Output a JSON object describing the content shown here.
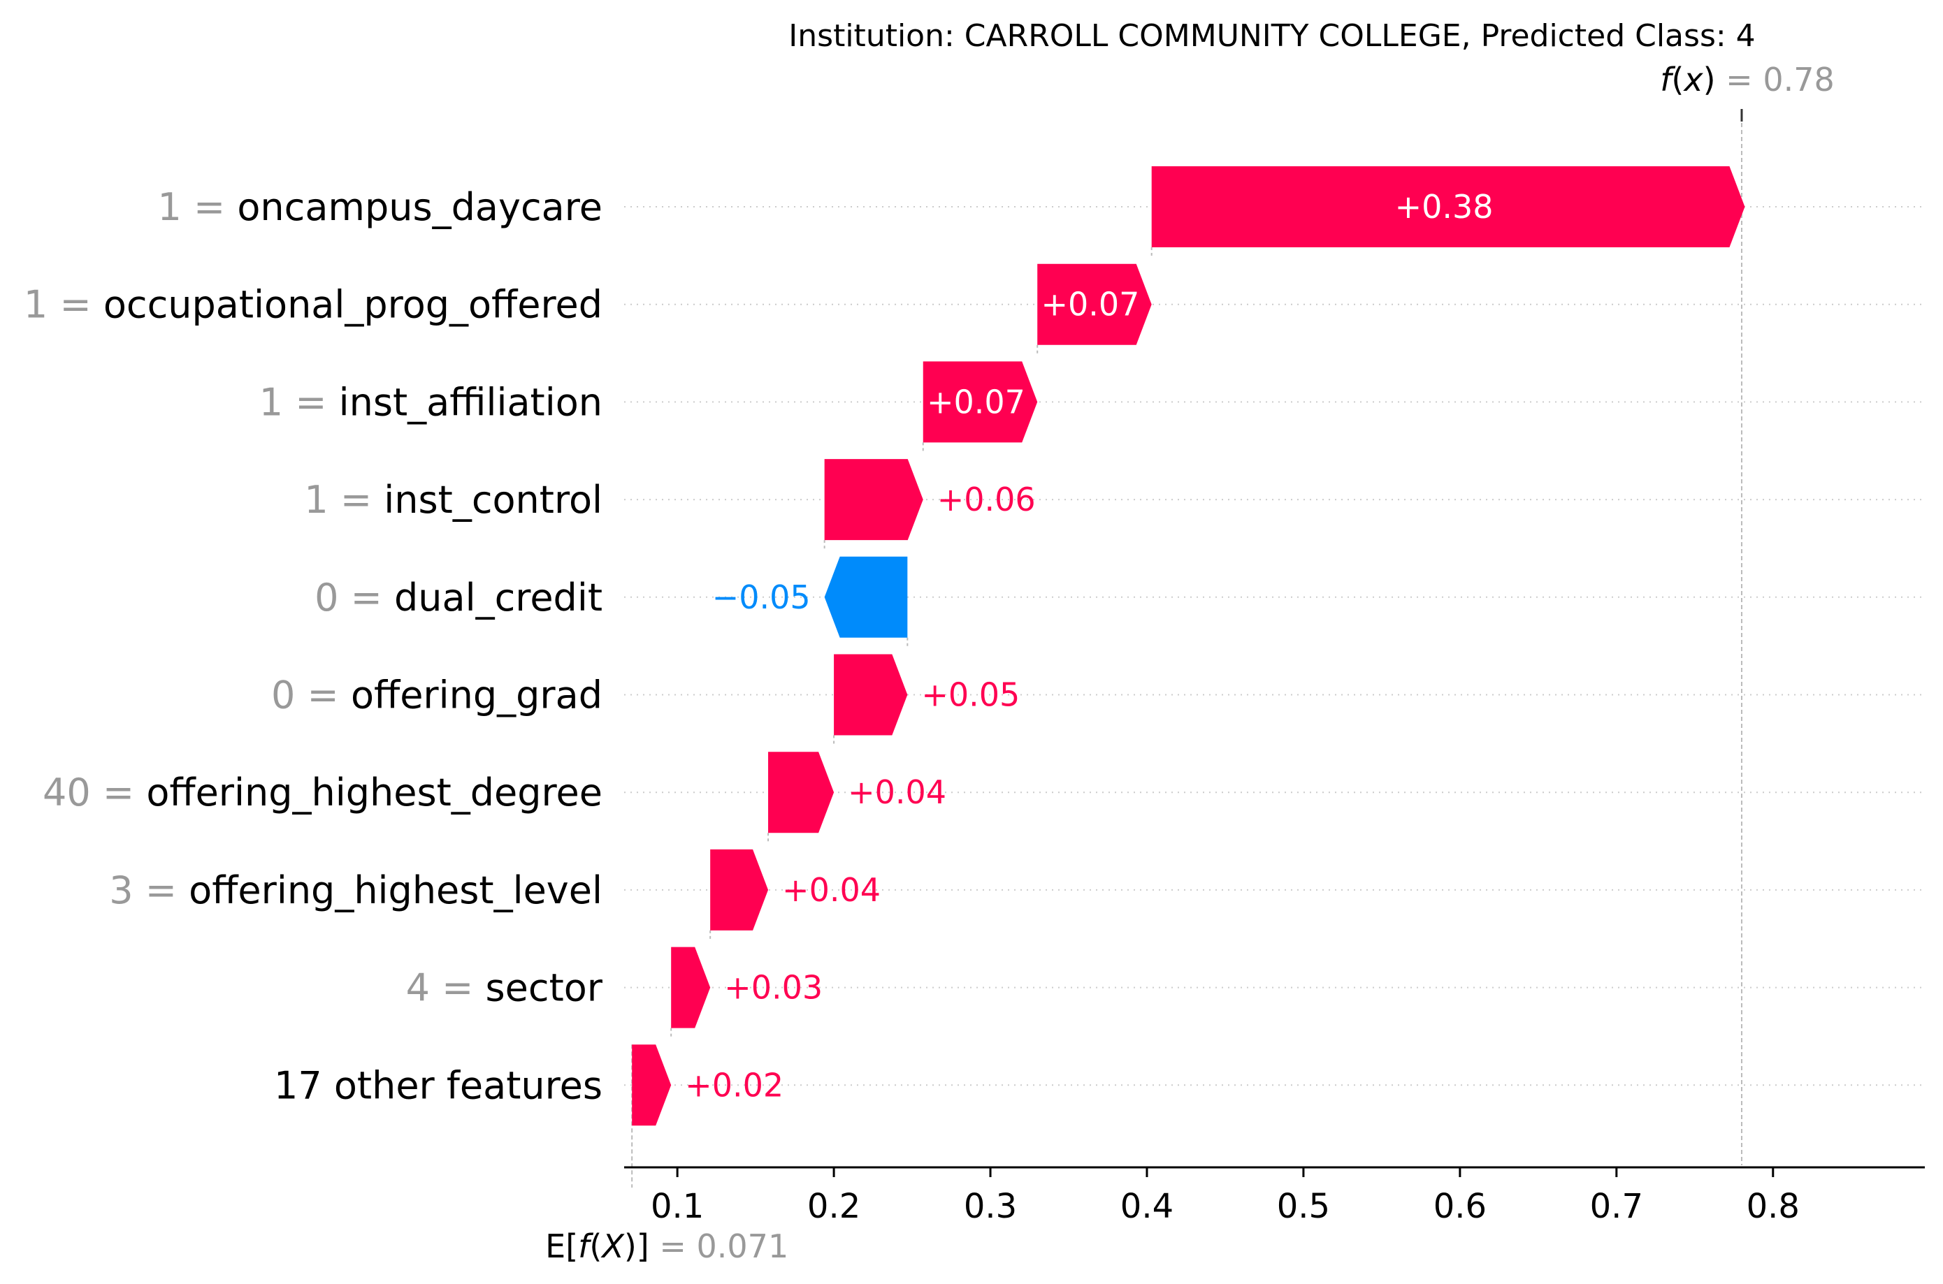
{
  "chart_data": {
    "type": "waterfall",
    "title": "Institution: CARROLL COMMUNITY COLLEGE, Predicted Class: 4",
    "fx": {
      "label_func": "f",
      "label_var": "x",
      "label_eq": " = ",
      "value": 0.78,
      "value_text": "0.78"
    },
    "base": {
      "label_prefix": "E[",
      "label_func": "f",
      "label_open": "(",
      "label_var": "X",
      "label_close": ")]",
      "label_eq": " = ",
      "value": 0.071,
      "value_text": "0.071"
    },
    "features": [
      {
        "value": "1",
        "name": "oncampus_daycare",
        "contribution": 0.379,
        "label": "+0.38"
      },
      {
        "value": "1",
        "name": "occupational_prog_offered",
        "contribution": 0.073,
        "label": "+0.07"
      },
      {
        "value": "1",
        "name": "inst_affiliation",
        "contribution": 0.073,
        "label": "+0.07"
      },
      {
        "value": "1",
        "name": "inst_control",
        "contribution": 0.063,
        "label": "+0.06"
      },
      {
        "value": "0",
        "name": "dual_credit",
        "contribution": -0.053,
        "label": "−0.05"
      },
      {
        "value": "0",
        "name": "offering_grad",
        "contribution": 0.047,
        "label": "+0.05"
      },
      {
        "value": "40",
        "name": "offering_highest_degree",
        "contribution": 0.042,
        "label": "+0.04"
      },
      {
        "value": "3",
        "name": "offering_highest_level",
        "contribution": 0.037,
        "label": "+0.04"
      },
      {
        "value": "4",
        "name": "sector",
        "contribution": 0.025,
        "label": "+0.03"
      },
      {
        "value": "",
        "name": "17 other features",
        "contribution": 0.025,
        "label": "+0.02"
      }
    ],
    "xticks": [
      0.1,
      0.2,
      0.3,
      0.4,
      0.5,
      0.6,
      0.7,
      0.8
    ],
    "xtick_labels": [
      "0.1",
      "0.2",
      "0.3",
      "0.4",
      "0.5",
      "0.6",
      "0.7",
      "0.8"
    ],
    "xlim": [
      0.066,
      0.897
    ],
    "colors": {
      "positive": "#ff0051",
      "negative": "#008bfb",
      "muted": "#999999",
      "text": "#000000",
      "grid": "#cccccc",
      "inside_text": "#ffffff"
    }
  }
}
